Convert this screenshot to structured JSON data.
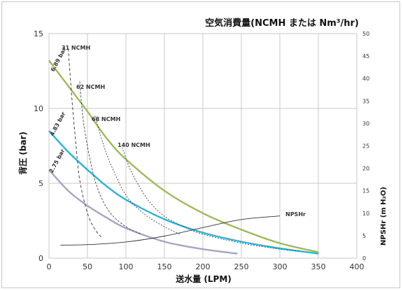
{
  "chart_data": {
    "type": "line",
    "title": "空気消費量(NCMH または Nm³/hr)",
    "xlabel": "送水量 (LPM)",
    "ylabel": "背圧 (bar)",
    "y2label": "NPSHr (m H₂O)",
    "xlim": [
      0,
      400
    ],
    "ylim": [
      0,
      15
    ],
    "y2lim": [
      0,
      50
    ],
    "xticks": [
      0,
      50,
      100,
      150,
      200,
      250,
      300,
      350,
      400
    ],
    "yticks": [
      0,
      5,
      10,
      15
    ],
    "y2ticks": [
      0,
      5,
      10,
      15,
      20,
      25,
      30,
      35,
      40,
      45,
      50
    ],
    "grid": true,
    "series": [
      {
        "name": "6.89 bar",
        "color": "#9bbb59",
        "x": [
          0,
          25,
          50,
          75,
          100,
          150,
          200,
          250,
          300,
          350
        ],
        "y": [
          13.2,
          11.5,
          9.8,
          8.0,
          6.6,
          4.5,
          3.0,
          1.9,
          1.0,
          0.4
        ]
      },
      {
        "name": "4.83 bar",
        "color": "#2ab3d6",
        "x": [
          0,
          25,
          50,
          75,
          100,
          150,
          200,
          250,
          300,
          350
        ],
        "y": [
          8.5,
          7.1,
          5.9,
          4.8,
          3.9,
          2.6,
          1.7,
          1.1,
          0.65,
          0.3
        ]
      },
      {
        "name": "2.75 bar",
        "color": "#a5a5c6",
        "x": [
          0,
          25,
          50,
          75,
          100,
          150,
          200,
          245
        ],
        "y": [
          5.9,
          4.5,
          3.5,
          2.7,
          2.0,
          1.1,
          0.6,
          0.3
        ]
      },
      {
        "name": "NPSHr",
        "color": "#333333",
        "axis": "right",
        "x": [
          15,
          50,
          100,
          150,
          200,
          250,
          300
        ],
        "y": [
          2.9,
          3.0,
          3.6,
          4.9,
          6.8,
          8.6,
          9.4
        ]
      },
      {
        "name": "31 NCMH",
        "color": "#333333",
        "dash": "4,3",
        "x": [
          25,
          30,
          35,
          40,
          50,
          60,
          70
        ],
        "y": [
          14.0,
          10.5,
          7.6,
          5.2,
          3.0,
          1.9,
          1.3
        ]
      },
      {
        "name": "62 NCMH",
        "color": "#444444",
        "dash": "3,2",
        "x": [
          40,
          45,
          55,
          65,
          80,
          100,
          120
        ],
        "y": [
          11.8,
          9.0,
          6.2,
          4.4,
          3.0,
          2.1,
          1.6
        ]
      },
      {
        "name": "68 NCMH",
        "color": "#444444",
        "dash": "2,2",
        "x": [
          60,
          70,
          80,
          100,
          125,
          150,
          170
        ],
        "y": [
          9.5,
          7.7,
          6.3,
          4.2,
          2.9,
          2.1,
          1.6
        ]
      },
      {
        "name": "140 NCMH",
        "color": "#444444",
        "dash": "2,2",
        "x": [
          95,
          105,
          115,
          130,
          150,
          175,
          200,
          250,
          300,
          325
        ],
        "y": [
          7.4,
          6.0,
          5.0,
          3.8,
          2.8,
          2.1,
          1.6,
          1.0,
          0.6,
          0.45
        ]
      }
    ],
    "labels": {
      "ncmh": [
        "31 NCMH",
        "62 NCMH",
        "68 NCMH",
        "140 NCMH"
      ],
      "bar": [
        "6.89 bar",
        "4.83 bar",
        "2.75 bar"
      ],
      "npshr": "NPSHr"
    }
  }
}
